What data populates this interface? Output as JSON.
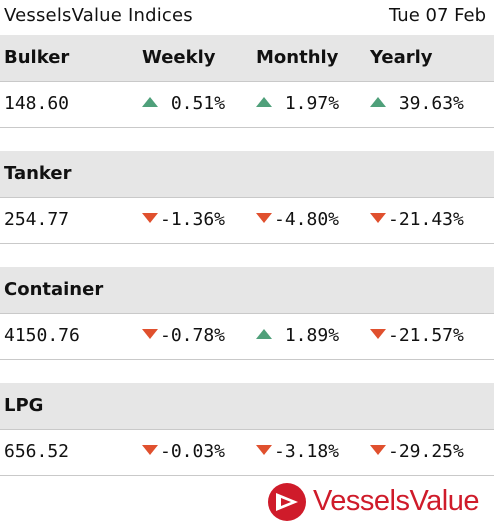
{
  "header": {
    "title": "VesselsValue Indices",
    "date": "Tue 07 Feb"
  },
  "columns": {
    "weekly": "Weekly",
    "monthly": "Monthly",
    "yearly": "Yearly"
  },
  "indices": [
    {
      "name": "Bulker",
      "value": "148.60",
      "weekly": {
        "text": "0.51%",
        "direction": "up"
      },
      "monthly": {
        "text": "1.97%",
        "direction": "up"
      },
      "yearly": {
        "text": "39.63%",
        "direction": "up"
      }
    },
    {
      "name": "Tanker",
      "value": "254.77",
      "weekly": {
        "text": "-1.36%",
        "direction": "down"
      },
      "monthly": {
        "text": "-4.80%",
        "direction": "down"
      },
      "yearly": {
        "text": "-21.43%",
        "direction": "down"
      }
    },
    {
      "name": "Container",
      "value": "4150.76",
      "weekly": {
        "text": "-0.78%",
        "direction": "down"
      },
      "monthly": {
        "text": "1.89%",
        "direction": "up"
      },
      "yearly": {
        "text": "-21.57%",
        "direction": "down"
      }
    },
    {
      "name": "LPG",
      "value": "656.52",
      "weekly": {
        "text": "-0.03%",
        "direction": "down"
      },
      "monthly": {
        "text": "-3.18%",
        "direction": "down"
      },
      "yearly": {
        "text": "-29.25%",
        "direction": "down"
      }
    }
  ],
  "brand": {
    "name": "VesselsValue",
    "color": "#cf1b2a"
  },
  "colors": {
    "up": "#4fa07a",
    "down": "#e0502e",
    "header_bg": "#e6e6e6"
  }
}
